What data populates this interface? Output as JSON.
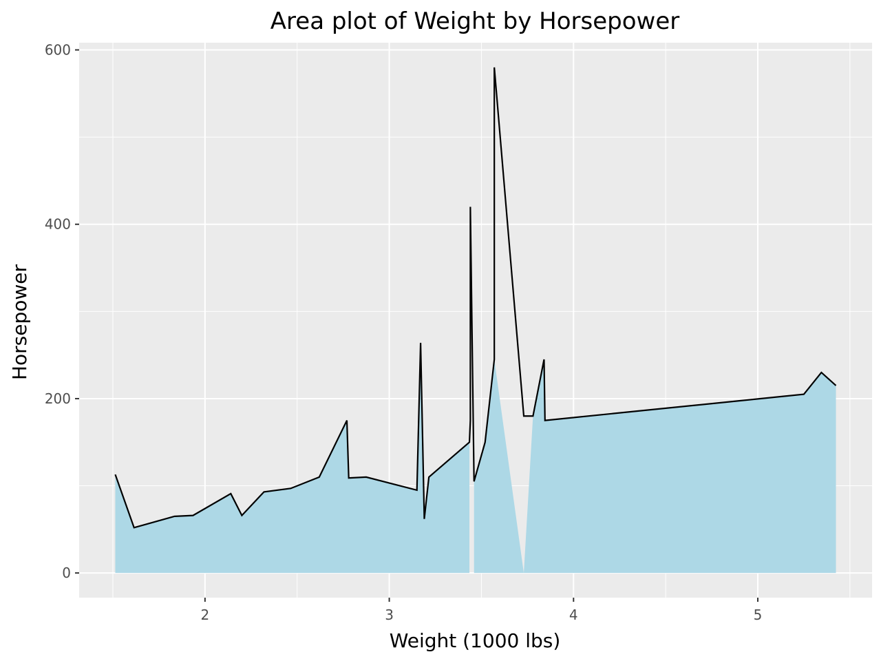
{
  "chart_data": {
    "type": "area",
    "title": "Area plot of Weight by Horsepower",
    "xlabel": "Weight (1000 lbs)",
    "ylabel": "Horsepower",
    "xlim": [
      1.317,
      5.62
    ],
    "ylim": [
      -28.3,
      608.3
    ],
    "x_ticks": [
      2,
      3,
      4,
      5
    ],
    "x_tick_labels": [
      "2",
      "3",
      "4",
      "5"
    ],
    "y_ticks": [
      0,
      200,
      400,
      600
    ],
    "y_tick_labels": [
      "0",
      "200",
      "400",
      "600"
    ],
    "grid": true,
    "legend": "none",
    "colors": {
      "panel_background": "#ebebeb",
      "grid": "#ffffff",
      "fill": "#add8e6",
      "line": "#000000",
      "tick_label": "#4d4d4d",
      "title": "#000000"
    },
    "series": [
      {
        "x": [
          1.513,
          1.615,
          1.835,
          1.935,
          2.14,
          2.2,
          2.32,
          2.465,
          2.62,
          2.77,
          2.78,
          2.875,
          3.15,
          3.17,
          3.19,
          3.215,
          3.435,
          3.44,
          3.44,
          3.46,
          3.52,
          3.57,
          3.57,
          3.73,
          3.78,
          3.84,
          3.845,
          5.25,
          5.345,
          5.424
        ],
        "y": [
          113,
          52,
          65,
          66,
          91,
          66,
          93,
          97,
          110,
          175,
          109,
          110,
          95,
          264,
          62,
          110,
          150,
          175,
          420,
          105,
          150,
          245,
          580,
          180,
          180,
          245,
          175,
          205,
          230,
          215
        ],
        "fill_y": [
          113,
          52,
          65,
          66,
          91,
          66,
          93,
          97,
          110,
          175,
          109,
          110,
          95,
          264,
          62,
          110,
          150,
          null,
          null,
          105,
          150,
          245,
          245,
          0,
          180,
          245,
          175,
          205,
          230,
          215
        ]
      }
    ]
  }
}
